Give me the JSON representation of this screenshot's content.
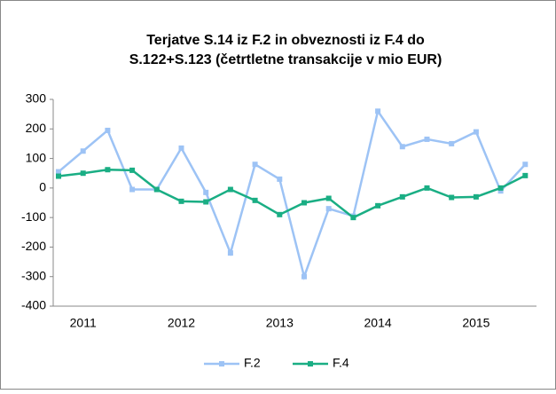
{
  "chart_data": {
    "type": "line",
    "title": [
      "Terjatve S.14 iz F.2 in obveznosti iz F.4 do",
      "S.122+S.123 (četrtletne transakcije v mio EUR)"
    ],
    "categories": [
      null,
      "2011",
      null,
      null,
      null,
      "2012",
      null,
      null,
      null,
      "2013",
      null,
      null,
      null,
      "2014",
      null,
      null,
      null,
      "2015",
      null,
      null
    ],
    "series": [
      {
        "name": "F.2",
        "color": "#9dc3f5",
        "values": [
          55,
          125,
          195,
          -5,
          -5,
          135,
          -15,
          -220,
          80,
          30,
          -300,
          -70,
          -95,
          260,
          140,
          165,
          150,
          190,
          -10,
          80
        ]
      },
      {
        "name": "F.4",
        "color": "#1aae84",
        "values": [
          40,
          50,
          62,
          60,
          -5,
          -45,
          -47,
          -5,
          -42,
          -90,
          -50,
          -35,
          -100,
          -60,
          -30,
          0,
          -32,
          -30,
          0,
          42
        ]
      }
    ],
    "ylim": [
      -400,
      300
    ],
    "yticks": [
      -400,
      -300,
      -200,
      -100,
      0,
      100,
      200,
      300
    ],
    "grid": false,
    "legend": "bottom"
  }
}
